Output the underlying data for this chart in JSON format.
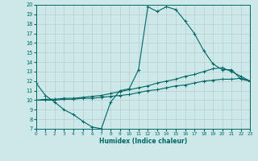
{
  "xlabel": "Humidex (Indice chaleur)",
  "bg_color": "#cce8e8",
  "grid_color": "#aacccc",
  "line_color": "#006666",
  "xlim": [
    0,
    23
  ],
  "ylim": [
    7,
    20
  ],
  "xticks": [
    0,
    1,
    2,
    3,
    4,
    5,
    6,
    7,
    8,
    9,
    10,
    11,
    12,
    13,
    14,
    15,
    16,
    17,
    18,
    19,
    20,
    21,
    22,
    23
  ],
  "yticks": [
    7,
    8,
    9,
    10,
    11,
    12,
    13,
    14,
    15,
    16,
    17,
    18,
    19,
    20
  ],
  "line1_x": [
    0,
    1,
    2,
    3,
    4,
    5,
    6,
    7,
    8,
    9,
    10,
    11,
    12,
    13,
    14,
    15,
    16,
    17,
    18,
    19,
    20,
    21,
    22,
    23
  ],
  "line1_y": [
    11.8,
    10.5,
    9.8,
    9.0,
    8.5,
    7.8,
    7.2,
    7.0,
    9.8,
    11.0,
    11.2,
    13.2,
    19.8,
    19.3,
    19.8,
    19.5,
    18.3,
    17.0,
    15.2,
    13.8,
    13.2,
    13.2,
    12.2,
    12.0
  ],
  "line2_x": [
    0,
    1,
    2,
    3,
    4,
    5,
    6,
    7,
    8,
    9,
    10,
    11,
    12,
    13,
    14,
    15,
    16,
    17,
    18,
    19,
    20,
    21,
    22,
    23
  ],
  "line2_y": [
    10.0,
    10.1,
    10.1,
    10.2,
    10.2,
    10.3,
    10.4,
    10.5,
    10.7,
    10.9,
    11.1,
    11.3,
    11.5,
    11.8,
    12.0,
    12.2,
    12.5,
    12.7,
    13.0,
    13.3,
    13.4,
    13.0,
    12.5,
    12.0
  ],
  "line3_x": [
    0,
    1,
    2,
    3,
    4,
    5,
    6,
    7,
    8,
    9,
    10,
    11,
    12,
    13,
    14,
    15,
    16,
    17,
    18,
    19,
    20,
    21,
    22,
    23
  ],
  "line3_y": [
    10.0,
    10.0,
    10.0,
    10.1,
    10.1,
    10.2,
    10.2,
    10.3,
    10.4,
    10.5,
    10.6,
    10.8,
    11.0,
    11.1,
    11.3,
    11.5,
    11.6,
    11.8,
    12.0,
    12.1,
    12.2,
    12.2,
    12.3,
    12.0
  ]
}
